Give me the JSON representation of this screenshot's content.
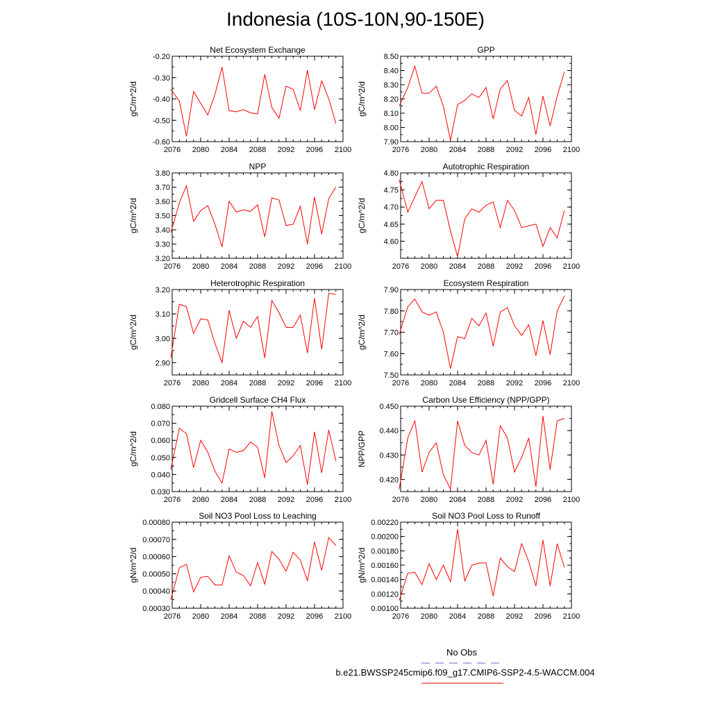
{
  "figure": {
    "title": "Indonesia (10S-10N,90-150E)",
    "line_color": "#ff0000",
    "obs_line_color": "#6666cc"
  },
  "legend": {
    "obs_label": "No Obs",
    "model_label": "b.e21.BWSSP245cmip6.f09_g17.CMIP6-SSP2-4.5-WACCM.004"
  },
  "chart_data": [
    {
      "type": "line",
      "title": "Net Ecosystem Exchange",
      "ylabel": "gC/m^2/d",
      "xlim": [
        2076,
        2100
      ],
      "ylim": [
        -0.6,
        -0.2
      ],
      "xticks": [
        2076,
        2080,
        2084,
        2088,
        2092,
        2096,
        2100
      ],
      "xtick_labels": [
        "2076",
        "2080",
        "2084",
        "2088",
        "2092",
        "2096",
        "2100"
      ],
      "yticks": [
        -0.6,
        -0.5,
        -0.4,
        -0.3,
        -0.2
      ],
      "ytick_labels": [
        "-0.60",
        "-0.50",
        "-0.40",
        "-0.30",
        "-0.20"
      ],
      "x": [
        2075.8,
        2077,
        2078,
        2079,
        2080,
        2081,
        2082,
        2083,
        2084,
        2085,
        2086,
        2087,
        2088,
        2089,
        2090,
        2091,
        2092,
        2093,
        2094,
        2095,
        2096,
        2097,
        2098,
        2099
      ],
      "y": [
        -0.355,
        -0.41,
        -0.575,
        -0.365,
        -0.42,
        -0.475,
        -0.38,
        -0.25,
        -0.455,
        -0.46,
        -0.45,
        -0.465,
        -0.47,
        -0.285,
        -0.44,
        -0.49,
        -0.34,
        -0.355,
        -0.455,
        -0.265,
        -0.45,
        -0.315,
        -0.4,
        -0.515
      ]
    },
    {
      "type": "line",
      "title": "GPP",
      "ylabel": "gC/m^2/d",
      "xlim": [
        2076,
        2100
      ],
      "ylim": [
        7.9,
        8.5
      ],
      "xticks": [
        2076,
        2080,
        2084,
        2088,
        2092,
        2096,
        2100
      ],
      "xtick_labels": [
        "2076",
        "2080",
        "2084",
        "2088",
        "2092",
        "2096",
        "2100"
      ],
      "yticks": [
        7.9,
        8.0,
        8.1,
        8.2,
        8.3,
        8.4,
        8.5
      ],
      "ytick_labels": [
        "7.90",
        "8.00",
        "8.10",
        "8.20",
        "8.30",
        "8.40",
        "8.50"
      ],
      "x": [
        2075.8,
        2077,
        2078,
        2079,
        2080,
        2081,
        2082,
        2083,
        2084,
        2085,
        2086,
        2087,
        2088,
        2089,
        2090,
        2091,
        2092,
        2093,
        2094,
        2095,
        2096,
        2097,
        2098,
        2099
      ],
      "y": [
        8.15,
        8.28,
        8.43,
        8.24,
        8.24,
        8.29,
        8.15,
        7.91,
        8.16,
        8.19,
        8.235,
        8.21,
        8.28,
        8.06,
        8.27,
        8.33,
        8.12,
        8.08,
        8.21,
        7.95,
        8.22,
        8.01,
        8.22,
        8.39
      ]
    },
    {
      "type": "line",
      "title": "NPP",
      "ylabel": "gC/m^2/d",
      "xlim": [
        2076,
        2100
      ],
      "ylim": [
        3.2,
        3.8
      ],
      "xticks": [
        2076,
        2080,
        2084,
        2088,
        2092,
        2096,
        2100
      ],
      "xtick_labels": [
        "2076",
        "2080",
        "2084",
        "2088",
        "2092",
        "2096",
        "2100"
      ],
      "yticks": [
        3.2,
        3.3,
        3.4,
        3.5,
        3.6,
        3.7,
        3.8
      ],
      "ytick_labels": [
        "3.20",
        "3.30",
        "3.40",
        "3.50",
        "3.60",
        "3.70",
        "3.80"
      ],
      "x": [
        2075.8,
        2077,
        2078,
        2079,
        2080,
        2081,
        2082,
        2083,
        2084,
        2085,
        2086,
        2087,
        2088,
        2089,
        2090,
        2091,
        2092,
        2093,
        2094,
        2095,
        2096,
        2097,
        2098,
        2099
      ],
      "y": [
        3.38,
        3.59,
        3.71,
        3.46,
        3.535,
        3.57,
        3.44,
        3.28,
        3.6,
        3.525,
        3.54,
        3.53,
        3.575,
        3.35,
        3.625,
        3.61,
        3.43,
        3.44,
        3.565,
        3.3,
        3.63,
        3.37,
        3.62,
        3.7
      ]
    },
    {
      "type": "line",
      "title": "Autotrophic Respiration",
      "ylabel": "gC/m^2/d",
      "xlim": [
        2076,
        2100
      ],
      "ylim": [
        4.55,
        4.8
      ],
      "xticks": [
        2076,
        2080,
        2084,
        2088,
        2092,
        2096,
        2100
      ],
      "xtick_labels": [
        "2076",
        "2080",
        "2084",
        "2088",
        "2092",
        "2096",
        "2100"
      ],
      "yticks": [
        4.6,
        4.65,
        4.7,
        4.75,
        4.8
      ],
      "ytick_labels": [
        "4.60",
        "4.65",
        "4.70",
        "4.75",
        "4.80"
      ],
      "x": [
        2075.8,
        2077,
        2078,
        2079,
        2080,
        2081,
        2082,
        2083,
        2084,
        2085,
        2086,
        2087,
        2088,
        2089,
        2090,
        2091,
        2092,
        2093,
        2094,
        2095,
        2096,
        2097,
        2098,
        2099
      ],
      "y": [
        4.78,
        4.685,
        4.73,
        4.775,
        4.695,
        4.72,
        4.72,
        4.63,
        4.555,
        4.665,
        4.695,
        4.685,
        4.705,
        4.715,
        4.64,
        4.72,
        4.69,
        4.64,
        4.645,
        4.65,
        4.585,
        4.64,
        4.61,
        4.69
      ]
    },
    {
      "type": "line",
      "title": "Heterotrophic Respiration",
      "ylabel": "gC/m^2/d",
      "xlim": [
        2076,
        2100
      ],
      "ylim": [
        2.85,
        3.2
      ],
      "xticks": [
        2076,
        2080,
        2084,
        2088,
        2092,
        2096,
        2100
      ],
      "xtick_labels": [
        "2076",
        "2080",
        "2084",
        "2088",
        "2092",
        "2096",
        "2100"
      ],
      "yticks": [
        2.9,
        3.0,
        3.1,
        3.2
      ],
      "ytick_labels": [
        "2.90",
        "3.00",
        "3.10",
        "3.20"
      ],
      "x": [
        2075.8,
        2077,
        2078,
        2079,
        2080,
        2081,
        2082,
        2083,
        2084,
        2085,
        2086,
        2087,
        2088,
        2089,
        2090,
        2091,
        2092,
        2093,
        2094,
        2095,
        2096,
        2097,
        2098,
        2099
      ],
      "y": [
        2.92,
        3.14,
        3.13,
        3.02,
        3.08,
        3.075,
        2.98,
        2.9,
        3.115,
        3.0,
        3.07,
        3.045,
        3.09,
        2.92,
        3.155,
        3.105,
        3.045,
        3.045,
        3.095,
        2.94,
        3.165,
        2.955,
        3.185,
        3.18
      ]
    },
    {
      "type": "line",
      "title": "Ecosystem Respiration",
      "ylabel": "gC/m^2/d",
      "xlim": [
        2076,
        2100
      ],
      "ylim": [
        7.5,
        7.9
      ],
      "xticks": [
        2076,
        2080,
        2084,
        2088,
        2092,
        2096,
        2100
      ],
      "xtick_labels": [
        "2076",
        "2080",
        "2084",
        "2088",
        "2092",
        "2096",
        "2100"
      ],
      "yticks": [
        7.5,
        7.6,
        7.7,
        7.8,
        7.9
      ],
      "ytick_labels": [
        "7.50",
        "7.60",
        "7.70",
        "7.80",
        "7.90"
      ],
      "x": [
        2075.8,
        2077,
        2078,
        2079,
        2080,
        2081,
        2082,
        2083,
        2084,
        2085,
        2086,
        2087,
        2088,
        2089,
        2090,
        2091,
        2092,
        2093,
        2094,
        2095,
        2096,
        2097,
        2098,
        2099
      ],
      "y": [
        7.69,
        7.82,
        7.855,
        7.795,
        7.78,
        7.795,
        7.7,
        7.53,
        7.68,
        7.67,
        7.765,
        7.73,
        7.79,
        7.635,
        7.795,
        7.815,
        7.73,
        7.685,
        7.735,
        7.59,
        7.755,
        7.595,
        7.8,
        7.87
      ]
    },
    {
      "type": "line",
      "title": "Gridcell Surface CH4 Flux",
      "ylabel": "gC/m^2/d",
      "xlim": [
        2076,
        2100
      ],
      "ylim": [
        0.03,
        0.08
      ],
      "xticks": [
        2076,
        2080,
        2084,
        2088,
        2092,
        2096,
        2100
      ],
      "xtick_labels": [
        "2076",
        "2080",
        "2084",
        "2088",
        "2092",
        "2096",
        "2100"
      ],
      "yticks": [
        0.03,
        0.04,
        0.05,
        0.06,
        0.07,
        0.08
      ],
      "ytick_labels": [
        "0.030",
        "0.040",
        "0.050",
        "0.060",
        "0.070",
        "0.080"
      ],
      "x": [
        2075.8,
        2077,
        2078,
        2079,
        2080,
        2081,
        2082,
        2083,
        2084,
        2085,
        2086,
        2087,
        2088,
        2089,
        2090,
        2091,
        2092,
        2093,
        2094,
        2095,
        2096,
        2097,
        2098,
        2099
      ],
      "y": [
        0.043,
        0.067,
        0.064,
        0.044,
        0.06,
        0.053,
        0.042,
        0.035,
        0.055,
        0.053,
        0.054,
        0.059,
        0.056,
        0.038,
        0.077,
        0.057,
        0.047,
        0.051,
        0.057,
        0.034,
        0.065,
        0.041,
        0.066,
        0.048
      ]
    },
    {
      "type": "line",
      "title": "Carbon Use Efficiency (NPP/GPP)",
      "ylabel": "NPP/GPP",
      "xlim": [
        2076,
        2100
      ],
      "ylim": [
        0.415,
        0.45
      ],
      "xticks": [
        2076,
        2080,
        2084,
        2088,
        2092,
        2096,
        2100
      ],
      "xtick_labels": [
        "2076",
        "2080",
        "2084",
        "2088",
        "2092",
        "2096",
        "2100"
      ],
      "yticks": [
        0.42,
        0.43,
        0.44,
        0.45
      ],
      "ytick_labels": [
        "0.420",
        "0.430",
        "0.440",
        "0.450"
      ],
      "x": [
        2075.8,
        2077,
        2078,
        2079,
        2080,
        2081,
        2082,
        2083,
        2084,
        2085,
        2086,
        2087,
        2088,
        2089,
        2090,
        2091,
        2092,
        2093,
        2094,
        2095,
        2096,
        2097,
        2098,
        2099
      ],
      "y": [
        0.416,
        0.437,
        0.444,
        0.423,
        0.431,
        0.435,
        0.422,
        0.416,
        0.444,
        0.434,
        0.431,
        0.43,
        0.436,
        0.418,
        0.442,
        0.437,
        0.423,
        0.429,
        0.437,
        0.417,
        0.446,
        0.424,
        0.444,
        0.445
      ]
    },
    {
      "type": "line",
      "title": "Soil NO3 Pool Loss to Leaching",
      "ylabel": "gN/m^2/d",
      "xlim": [
        2076,
        2100
      ],
      "ylim": [
        0.0003,
        0.0008
      ],
      "xticks": [
        2076,
        2080,
        2084,
        2088,
        2092,
        2096,
        2100
      ],
      "xtick_labels": [
        "2076",
        "2080",
        "2084",
        "2088",
        "2092",
        "2096",
        "2100"
      ],
      "yticks": [
        0.0003,
        0.0004,
        0.0005,
        0.0006,
        0.0007,
        0.0008
      ],
      "ytick_labels": [
        "0.00030",
        "0.00040",
        "0.00050",
        "0.00060",
        "0.00070",
        "0.00080"
      ],
      "x": [
        2075.8,
        2077,
        2078,
        2079,
        2080,
        2081,
        2082,
        2083,
        2084,
        2085,
        2086,
        2087,
        2088,
        2089,
        2090,
        2091,
        2092,
        2093,
        2094,
        2095,
        2096,
        2097,
        2098,
        2099
      ],
      "y": [
        0.00035,
        0.000535,
        0.000555,
        0.000395,
        0.00048,
        0.000485,
        0.000435,
        0.000435,
        0.000605,
        0.00051,
        0.00049,
        0.00043,
        0.000565,
        0.00044,
        0.00063,
        0.000585,
        0.000515,
        0.000625,
        0.00058,
        0.00046,
        0.000685,
        0.00052,
        0.00071,
        0.000665
      ]
    },
    {
      "type": "line",
      "title": "Soil NO3 Pool Loss to Runoff",
      "ylabel": "gN/m^2/d",
      "xlim": [
        2076,
        2100
      ],
      "ylim": [
        0.001,
        0.0022
      ],
      "xticks": [
        2076,
        2080,
        2084,
        2088,
        2092,
        2096,
        2100
      ],
      "xtick_labels": [
        "2076",
        "2080",
        "2084",
        "2088",
        "2092",
        "2096",
        "2100"
      ],
      "yticks": [
        0.001,
        0.0012,
        0.0014,
        0.0016,
        0.0018,
        0.002,
        0.0022
      ],
      "ytick_labels": [
        "0.00100",
        "0.00120",
        "0.00140",
        "0.00160",
        "0.00180",
        "0.00200",
        "0.00220"
      ],
      "x": [
        2075.8,
        2077,
        2078,
        2079,
        2080,
        2081,
        2082,
        2083,
        2084,
        2085,
        2086,
        2087,
        2088,
        2089,
        2090,
        2091,
        2092,
        2093,
        2094,
        2095,
        2096,
        2097,
        2098,
        2099
      ],
      "y": [
        0.00111,
        0.00149,
        0.0015,
        0.00133,
        0.00162,
        0.0014,
        0.0016,
        0.00137,
        0.0021,
        0.00138,
        0.0016,
        0.00163,
        0.00163,
        0.00117,
        0.0017,
        0.00158,
        0.00151,
        0.0019,
        0.00165,
        0.00131,
        0.00195,
        0.00131,
        0.0019,
        0.00157
      ]
    }
  ]
}
